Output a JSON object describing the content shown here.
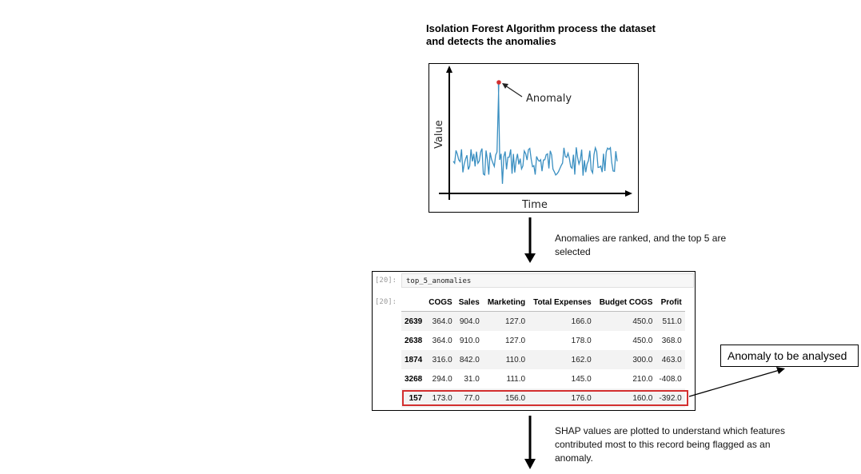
{
  "heading": "Isolation Forest Algorithm process the dataset and detects the anomalies",
  "plot": {
    "ylabel": "Value",
    "xlabel": "Time",
    "anomaly_label": "Anomaly"
  },
  "step1_note": "Anomalies are ranked, and the top 5 are selected",
  "notebook": {
    "in_prompt": "[20]:",
    "out_prompt": "[20]:",
    "code": "top_5_anomalies",
    "columns": [
      "",
      "COGS",
      "Sales",
      "Marketing",
      "Total Expenses",
      "Budget COGS",
      "Profit"
    ],
    "rows": [
      [
        "2639",
        "364.0",
        "904.0",
        "127.0",
        "166.0",
        "450.0",
        "511.0"
      ],
      [
        "2638",
        "364.0",
        "910.0",
        "127.0",
        "178.0",
        "450.0",
        "368.0"
      ],
      [
        "1874",
        "316.0",
        "842.0",
        "110.0",
        "162.0",
        "300.0",
        "463.0"
      ],
      [
        "3268",
        "294.0",
        "31.0",
        "111.0",
        "145.0",
        "210.0",
        "-408.0"
      ],
      [
        "157",
        "173.0",
        "77.0",
        "156.0",
        "176.0",
        "160.0",
        "-392.0"
      ]
    ]
  },
  "callout": "Anomaly to be analysed",
  "step2_note": "SHAP values are plotted to understand which features contributed most to this record being flagged as an anomaly.",
  "colors": {
    "series": "#3a8fc1",
    "anomaly_point": "#d32f2f",
    "highlight_border": "#d32f2f"
  },
  "icons": [
    "down-arrow-icon",
    "pointer-arrow-icon"
  ]
}
